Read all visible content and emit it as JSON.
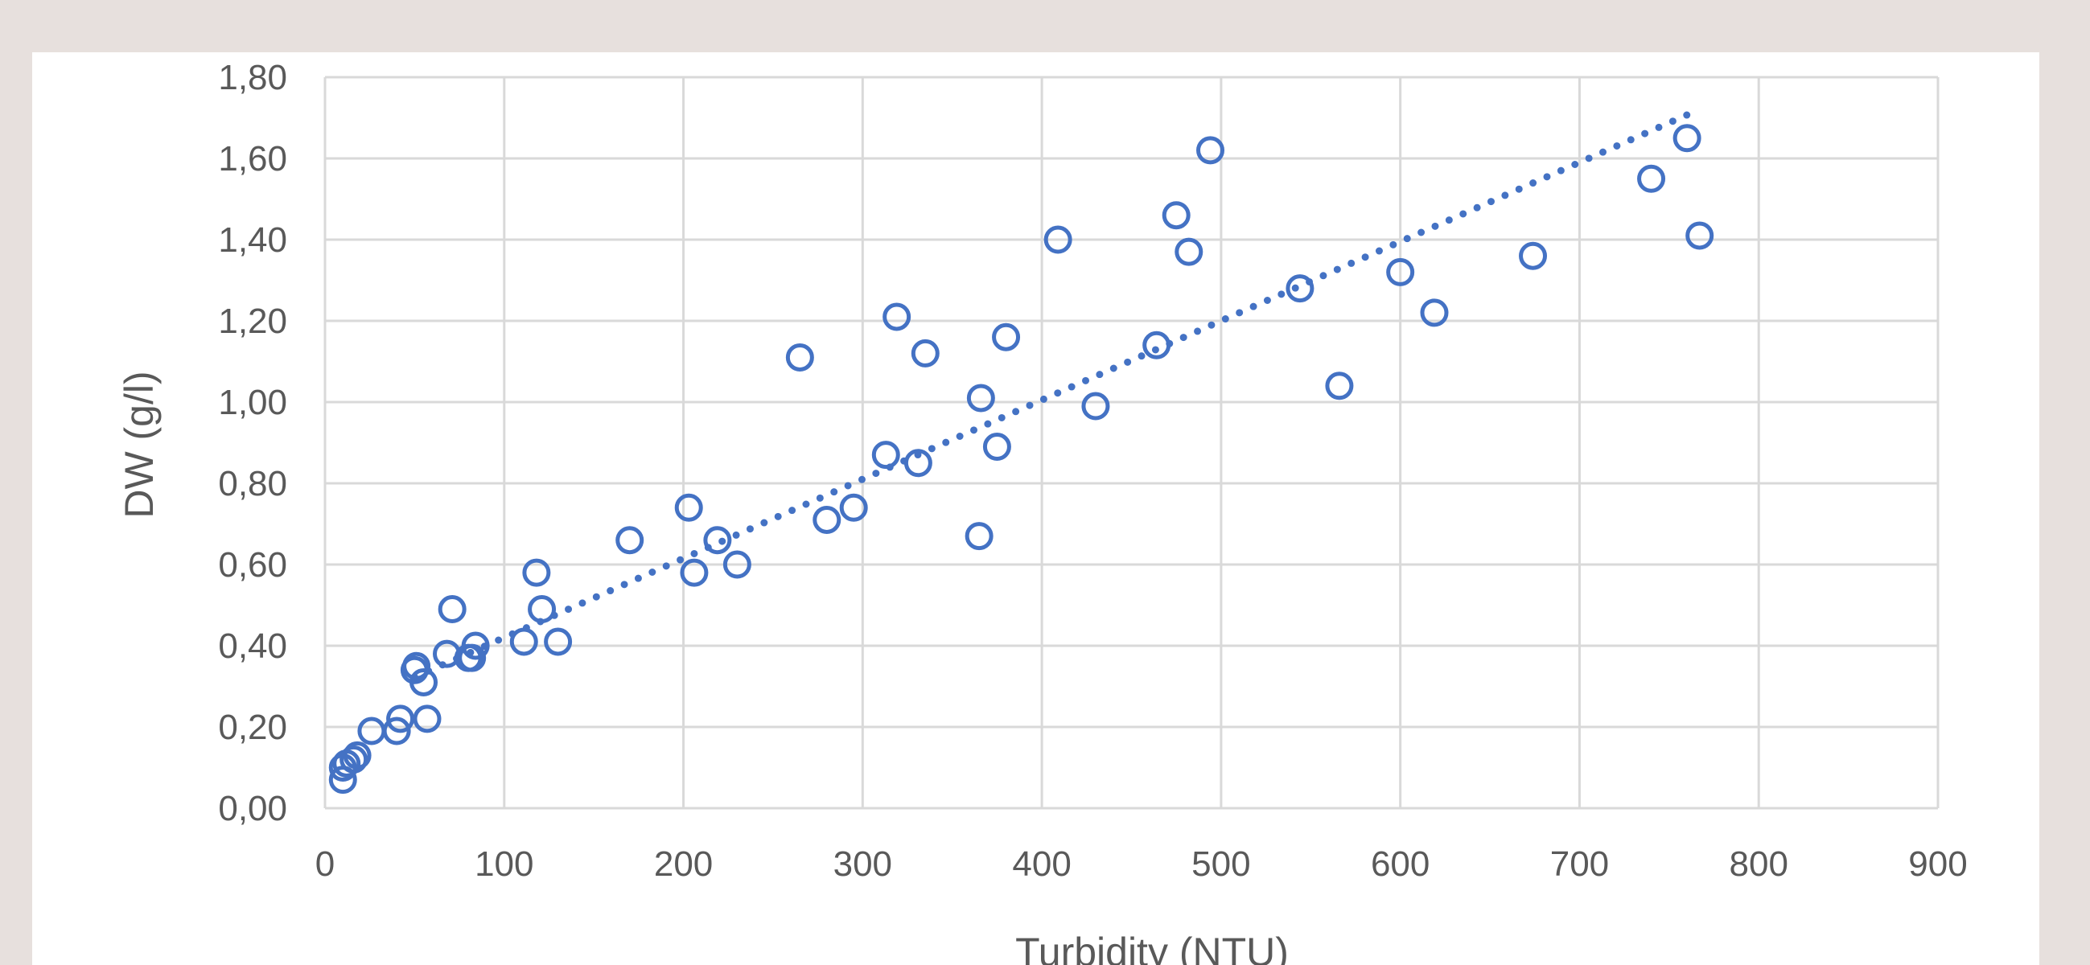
{
  "chart_data": {
    "type": "scatter",
    "xlabel": "Turbidity (NTU)",
    "ylabel": "DW (g/l)",
    "xlim": [
      0,
      900
    ],
    "ylim": [
      0,
      1.8
    ],
    "x_ticks": [
      "0",
      "100",
      "200",
      "300",
      "400",
      "500",
      "600",
      "700",
      "800",
      "900"
    ],
    "y_ticks": [
      "0,00",
      "0,20",
      "0,40",
      "0,60",
      "0,80",
      "1,00",
      "1,20",
      "1,40",
      "1,60",
      "1,80"
    ],
    "grid": true,
    "legend": "none",
    "marker_color": "#4472c4",
    "trendline": {
      "style": "dotted",
      "color": "#4472c4",
      "x_range": [
        50,
        760
      ]
    },
    "series": [
      {
        "points": [
          [
            10,
            0.07
          ],
          [
            10,
            0.1
          ],
          [
            12,
            0.11
          ],
          [
            16,
            0.12
          ],
          [
            18,
            0.13
          ],
          [
            26,
            0.19
          ],
          [
            40,
            0.19
          ],
          [
            42,
            0.22
          ],
          [
            50,
            0.34
          ],
          [
            51,
            0.35
          ],
          [
            55,
            0.31
          ],
          [
            57,
            0.22
          ],
          [
            68,
            0.38
          ],
          [
            71,
            0.49
          ],
          [
            80,
            0.37
          ],
          [
            82,
            0.37
          ],
          [
            84,
            0.4
          ],
          [
            111,
            0.41
          ],
          [
            118,
            0.58
          ],
          [
            121,
            0.49
          ],
          [
            130,
            0.41
          ],
          [
            170,
            0.66
          ],
          [
            203,
            0.74
          ],
          [
            206,
            0.58
          ],
          [
            219,
            0.66
          ],
          [
            230,
            0.6
          ],
          [
            265,
            1.11
          ],
          [
            280,
            0.71
          ],
          [
            295,
            0.74
          ],
          [
            313,
            0.87
          ],
          [
            319,
            1.21
          ],
          [
            331,
            0.85
          ],
          [
            335,
            1.12
          ],
          [
            365,
            0.67
          ],
          [
            366,
            1.01
          ],
          [
            375,
            0.89
          ],
          [
            380,
            1.16
          ],
          [
            409,
            1.4
          ],
          [
            430,
            0.99
          ],
          [
            464,
            1.14
          ],
          [
            475,
            1.46
          ],
          [
            482,
            1.37
          ],
          [
            494,
            1.62
          ],
          [
            544,
            1.28
          ],
          [
            566,
            1.04
          ],
          [
            600,
            1.32
          ],
          [
            619,
            1.22
          ],
          [
            674,
            1.36
          ],
          [
            740,
            1.55
          ],
          [
            760,
            1.65
          ],
          [
            767,
            1.41
          ]
        ]
      }
    ]
  }
}
